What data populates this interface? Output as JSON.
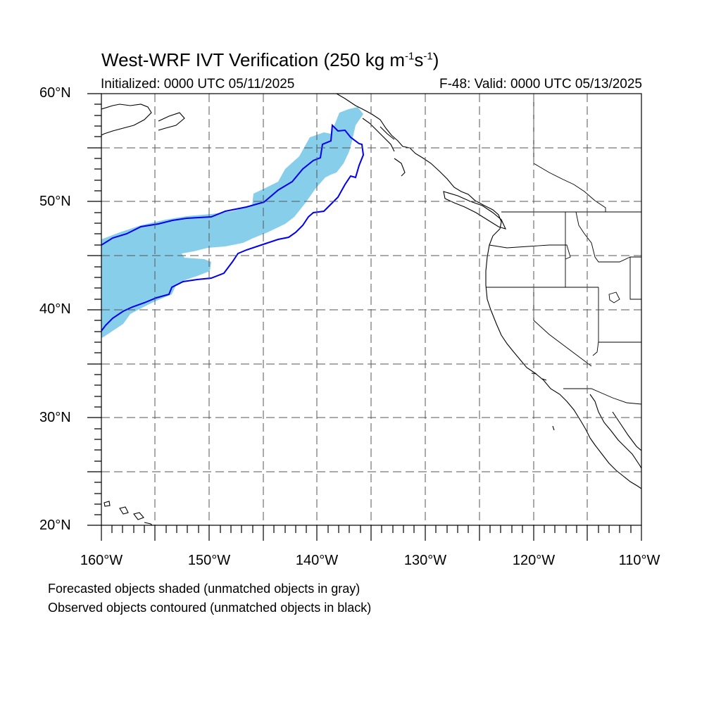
{
  "title": {
    "main": "West-WRF IVT Verification (250 kg m",
    "exp1": "-1",
    "mid": "s",
    "exp2": "-1",
    "close": ")"
  },
  "initialized": "Initialized: 0000 UTC 05/11/2025",
  "valid": "F-48: Valid: 0000 UTC 05/13/2025",
  "lat_labels": [
    "60°N",
    "50°N",
    "40°N",
    "30°N",
    "20°N"
  ],
  "lon_labels": [
    "160°W",
    "150°W",
    "140°W",
    "130°W",
    "120°W",
    "110°W"
  ],
  "captions": [
    "Forecasted objects shaded (unmatched objects in gray)",
    "Observed objects contoured (unmatched objects in black)"
  ],
  "colors": {
    "forecast_fill": "#87ceeb",
    "observed_contour": "#0000ee",
    "coastline": "#000000",
    "grid": "#555555"
  }
}
